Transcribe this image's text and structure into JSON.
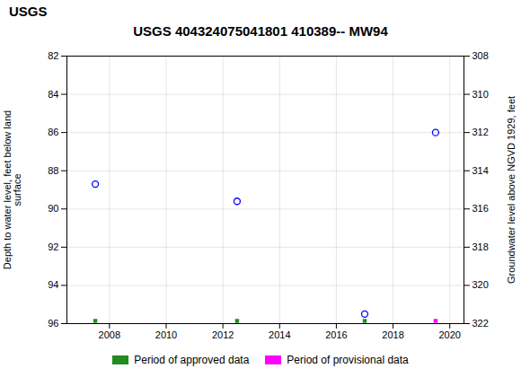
{
  "chart_data": {
    "type": "scatter",
    "title": "USGS 404324075041801 410389-- MW94",
    "annotations": [
      {
        "text": "USGS"
      }
    ],
    "x": [
      2007.5,
      2012.5,
      2017.0,
      2019.5
    ],
    "values": [
      88.7,
      89.6,
      95.5,
      86.0
    ],
    "color": "#0000FF",
    "marker": "circle",
    "series": [
      {
        "name": "Period of approved data",
        "type": "bar",
        "color": "#228B22",
        "x": [
          2007.5,
          2012.5,
          2017.0
        ]
      },
      {
        "name": "Period of provisional data",
        "type": "bar",
        "color": "#FF00FF",
        "x": [
          2019.5
        ]
      }
    ],
    "xlim": [
      2006.5,
      2020.5
    ],
    "xticks": [
      2008,
      2010,
      2012,
      2014,
      2016,
      2018,
      2020
    ],
    "ylabel": "Depth to water level, feet below land\nsurface",
    "ylim": [
      96,
      82
    ],
    "yticks": [
      82,
      84,
      86,
      88,
      90,
      92,
      94,
      96
    ],
    "y2label": "Groundwater level above NGVD 1929, feet",
    "y2lim": [
      322,
      308
    ],
    "y2ticks": [
      308,
      310,
      312,
      314,
      316,
      318,
      320,
      322
    ],
    "grid": true,
    "legend": "bottom"
  }
}
